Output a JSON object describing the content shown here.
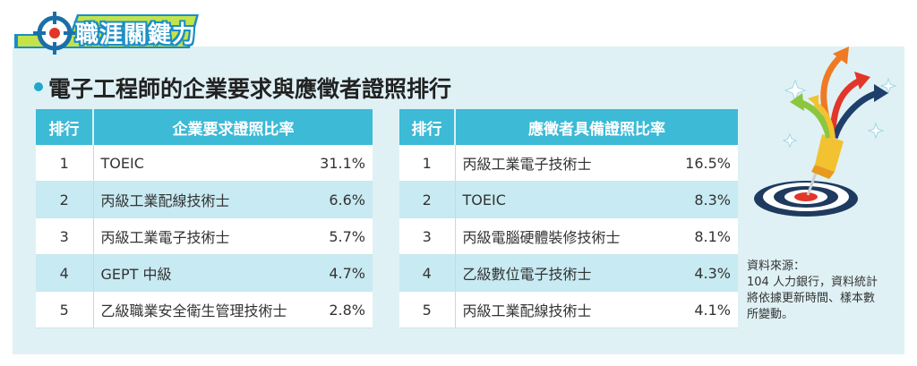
{
  "banner": {
    "title": "職涯關鍵力"
  },
  "section": {
    "title": "電子工程師的企業要求與應徵者證照排行"
  },
  "table_left": {
    "headers": {
      "rank": "排行",
      "item": "企業要求證照比率"
    },
    "rows": [
      {
        "rank": "1",
        "cert": "TOEIC",
        "pct": "31.1%"
      },
      {
        "rank": "2",
        "cert": "丙級工業配線技術士",
        "pct": "6.6%"
      },
      {
        "rank": "3",
        "cert": "丙級工業電子技術士",
        "pct": "5.7%"
      },
      {
        "rank": "4",
        "cert": "GEPT 中級",
        "pct": "4.7%"
      },
      {
        "rank": "5",
        "cert": "乙級職業安全衛生管理技術士",
        "pct": "2.8%"
      }
    ]
  },
  "table_right": {
    "headers": {
      "rank": "排行",
      "item": "應徵者具備證照比率"
    },
    "rows": [
      {
        "rank": "1",
        "cert": "丙級工業電子技術士",
        "pct": "16.5%"
      },
      {
        "rank": "2",
        "cert": "TOEIC",
        "pct": "8.3%"
      },
      {
        "rank": "3",
        "cert": "丙級電腦硬體裝修技術士",
        "pct": "8.1%"
      },
      {
        "rank": "4",
        "cert": "乙級數位電子技術士",
        "pct": "4.3%"
      },
      {
        "rank": "5",
        "cert": "丙級工業配線技術士",
        "pct": "4.1%"
      }
    ]
  },
  "source": {
    "label": "資料來源：",
    "text": "104 人力銀行，資料統計將依據更新時間、樣本數所變動。"
  },
  "colors": {
    "header": "#3cbad6",
    "row_alt": "#c8eaf2",
    "panel": "#dff1f5",
    "banner_green": "#c2e34a",
    "banner_blue": "#1b8ec4"
  },
  "icons": [
    "crosshair-icon",
    "target-arrows-illustration"
  ]
}
